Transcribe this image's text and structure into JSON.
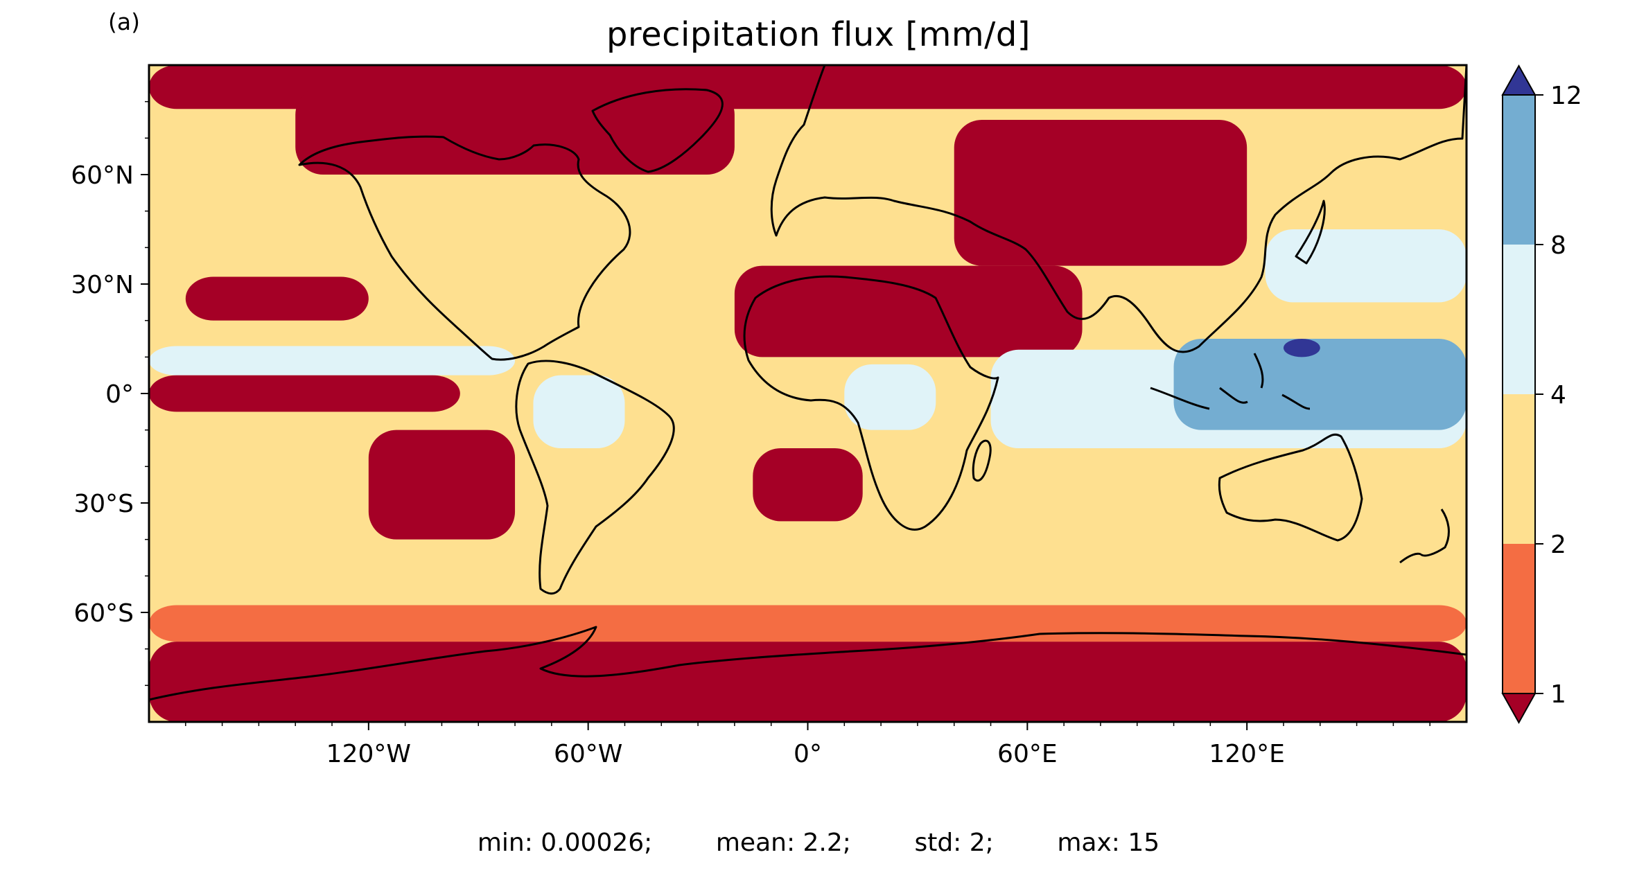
{
  "panel_label": "(a)",
  "title": "precipitation flux [mm/d]",
  "stats": {
    "min": "min: 0.00026;",
    "mean": "mean: 2.2;",
    "std": "std: 2;",
    "max": "max: 15"
  },
  "chart_data": {
    "type": "heatmap",
    "projection": "PlateCarree (global map)",
    "variable": "precipitation flux",
    "units": "mm/d",
    "xlim": [
      -180,
      180
    ],
    "ylim": [
      -90,
      90
    ],
    "x_ticks": [
      {
        "value": -120,
        "label": "120°W"
      },
      {
        "value": -60,
        "label": "60°W"
      },
      {
        "value": 0,
        "label": "0°"
      },
      {
        "value": 60,
        "label": "60°E"
      },
      {
        "value": 120,
        "label": "120°E"
      }
    ],
    "y_ticks": [
      {
        "value": 60,
        "label": "60°N"
      },
      {
        "value": 30,
        "label": "30°N"
      },
      {
        "value": 0,
        "label": "0°"
      },
      {
        "value": -30,
        "label": "30°S"
      },
      {
        "value": -60,
        "label": "60°S"
      }
    ],
    "colorbar": {
      "levels": [
        1,
        2,
        4,
        8,
        12
      ],
      "tick_labels": [
        "1",
        "2",
        "4",
        "8",
        "12"
      ],
      "extend": "both",
      "colors": {
        "under": "#a50026",
        "1-2": "#f46d43",
        "2-4": "#fee090",
        "4-8": "#e0f3f8",
        "8-12": "#74add1",
        "over": "#313695"
      }
    },
    "regions": [
      {
        "name": "arctic-cap",
        "class": "under",
        "lon": [
          -180,
          180
        ],
        "lat": [
          78,
          90
        ]
      },
      {
        "name": "antarctica",
        "class": "under",
        "lon": [
          -180,
          180
        ],
        "lat": [
          -90,
          -68
        ]
      },
      {
        "name": "southern-ocean-band",
        "class": "1-2",
        "lon": [
          -180,
          180
        ],
        "lat": [
          -68,
          -58
        ]
      },
      {
        "name": "sahara-arabia",
        "class": "under",
        "lon": [
          -20,
          75
        ],
        "lat": [
          10,
          35
        ]
      },
      {
        "name": "central-asia",
        "class": "under",
        "lon": [
          40,
          120
        ],
        "lat": [
          35,
          75
        ]
      },
      {
        "name": "north-canada-greenland",
        "class": "under",
        "lon": [
          -140,
          -20
        ],
        "lat": [
          60,
          84
        ]
      },
      {
        "name": "north-pacific-subtropical-high",
        "class": "under",
        "lon": [
          -170,
          -120
        ],
        "lat": [
          20,
          32
        ]
      },
      {
        "name": "south-pacific-high",
        "class": "under",
        "lon": [
          -120,
          -80
        ],
        "lat": [
          -40,
          -10
        ]
      },
      {
        "name": "south-atlantic-high",
        "class": "under",
        "lon": [
          -15,
          15
        ],
        "lat": [
          -35,
          -15
        ]
      },
      {
        "name": "equatorial-pacific-cold-tongue",
        "class": "under",
        "lon": [
          -180,
          -95
        ],
        "lat": [
          -5,
          5
        ]
      },
      {
        "name": "itcz-pacific",
        "class": "4-8",
        "lon": [
          -180,
          -80
        ],
        "lat": [
          5,
          13
        ]
      },
      {
        "name": "amazon",
        "class": "4-8",
        "lon": [
          -75,
          -50
        ],
        "lat": [
          -15,
          5
        ]
      },
      {
        "name": "central-africa",
        "class": "4-8",
        "lon": [
          10,
          35
        ],
        "lat": [
          -10,
          8
        ]
      },
      {
        "name": "indian-ocean-warm-pool",
        "class": "4-8",
        "lon": [
          50,
          180
        ],
        "lat": [
          -15,
          12
        ]
      },
      {
        "name": "kuroshio",
        "class": "4-8",
        "lon": [
          125,
          180
        ],
        "lat": [
          25,
          45
        ]
      },
      {
        "name": "maritime-continent",
        "class": "8-12",
        "lon": [
          100,
          180
        ],
        "lat": [
          -10,
          15
        ]
      },
      {
        "name": "west-pacific-peak",
        "class": "over",
        "lon": [
          130,
          140
        ],
        "lat": [
          10,
          15
        ]
      }
    ]
  }
}
